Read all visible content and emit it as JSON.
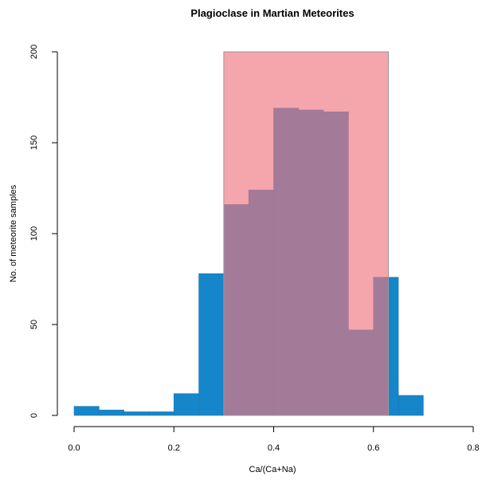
{
  "chart_data": {
    "type": "bar",
    "title": "Plagioclase in Martian Meteorites",
    "xlabel": "Ca/(Ca+Na)",
    "ylabel": "No. of meteorite samples",
    "xlim": [
      0.0,
      0.8
    ],
    "ylim": [
      0,
      200
    ],
    "xticks": [
      "0.0",
      "0.2",
      "0.4",
      "0.6",
      "0.8"
    ],
    "yticks": [
      "0",
      "50",
      "100",
      "150",
      "200"
    ],
    "bin_width": 0.05,
    "bins": [
      {
        "x0": 0.0,
        "x1": 0.05,
        "value": 5
      },
      {
        "x0": 0.05,
        "x1": 0.1,
        "value": 3
      },
      {
        "x0": 0.1,
        "x1": 0.15,
        "value": 2
      },
      {
        "x0": 0.15,
        "x1": 0.2,
        "value": 2
      },
      {
        "x0": 0.2,
        "x1": 0.25,
        "value": 12
      },
      {
        "x0": 0.25,
        "x1": 0.3,
        "value": 78
      },
      {
        "x0": 0.3,
        "x1": 0.35,
        "value": 116
      },
      {
        "x0": 0.35,
        "x1": 0.4,
        "value": 124
      },
      {
        "x0": 0.4,
        "x1": 0.45,
        "value": 169
      },
      {
        "x0": 0.45,
        "x1": 0.5,
        "value": 168
      },
      {
        "x0": 0.5,
        "x1": 0.55,
        "value": 167
      },
      {
        "x0": 0.55,
        "x1": 0.6,
        "value": 47
      },
      {
        "x0": 0.6,
        "x1": 0.65,
        "value": 76
      },
      {
        "x0": 0.65,
        "x1": 0.7,
        "value": 11
      }
    ],
    "highlight_region": {
      "x0": 0.3,
      "x1": 0.63,
      "y0": 0,
      "y1": 200
    },
    "grid": false,
    "colors": {
      "bars": "#1586c9",
      "bar_edge": "#1f78b4",
      "highlight": "#f07480",
      "highlight_alpha": 0.65,
      "highlight_edge": "#999999"
    }
  }
}
